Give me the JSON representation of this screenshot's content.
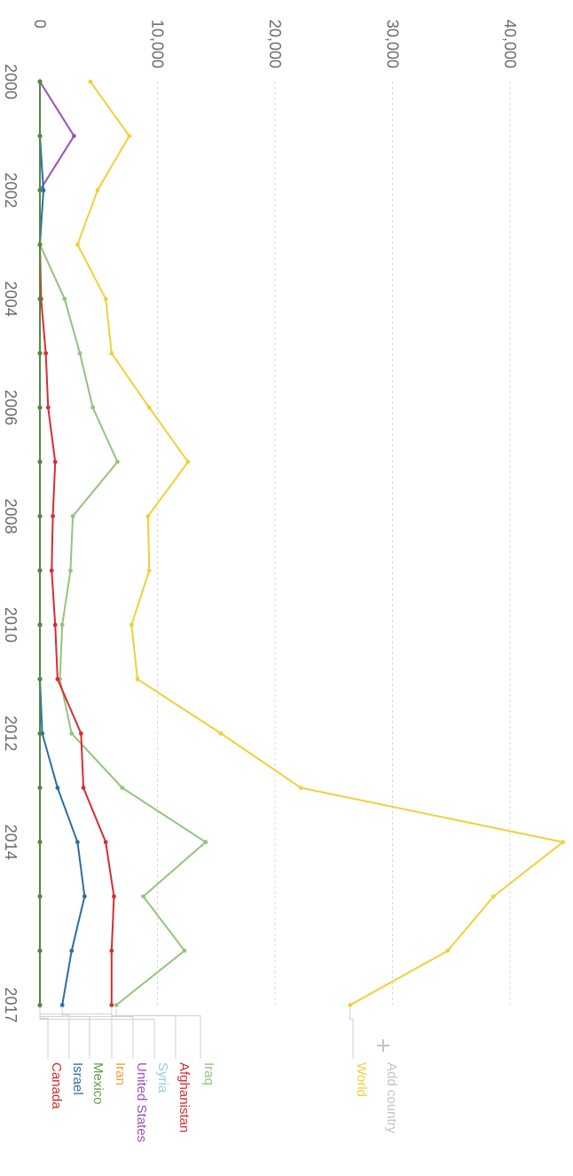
{
  "chart_data": {
    "type": "line",
    "x": [
      2000,
      2001,
      2002,
      2003,
      2004,
      2005,
      2006,
      2007,
      2008,
      2009,
      2010,
      2011,
      2012,
      2013,
      2014,
      2015,
      2016,
      2017
    ],
    "x_tick_labels": [
      "2000",
      "2002",
      "2004",
      "2006",
      "2008",
      "2010",
      "2012",
      "2014",
      "2017"
    ],
    "x_tick_values": [
      2000,
      2002,
      2004,
      2006,
      2008,
      2010,
      2012,
      2014,
      2017
    ],
    "y_tick_labels": [
      "0",
      "10,000",
      "20,000",
      "30,000",
      "40,000"
    ],
    "y_tick_values": [
      0,
      10000,
      20000,
      30000,
      40000
    ],
    "ylim": [
      0,
      45000
    ],
    "grid": true,
    "legend_position": "right",
    "add_country_label": "Add country",
    "series": [
      {
        "name": "World",
        "color": "#f2cf3a",
        "values": [
          4300,
          7600,
          4900,
          3200,
          5600,
          6100,
          9300,
          12600,
          9200,
          9300,
          7800,
          8300,
          15400,
          22200,
          44500,
          38600,
          34700,
          26400
        ]
      },
      {
        "name": "Iraq",
        "color": "#92c47e",
        "values": [
          0,
          0,
          0,
          0,
          2100,
          3400,
          4500,
          6600,
          2800,
          2600,
          1900,
          1700,
          2700,
          7000,
          14100,
          8800,
          12300,
          6500
        ]
      },
      {
        "name": "Afghanistan",
        "color": "#d62d32",
        "values": [
          0,
          0,
          0,
          0,
          100,
          500,
          700,
          1300,
          1100,
          1000,
          1300,
          1500,
          3500,
          3700,
          5600,
          6300,
          6100,
          6100
        ]
      },
      {
        "name": "Syria",
        "color": "#9ec8d8",
        "values": [
          0,
          0,
          0,
          0,
          0,
          0,
          0,
          0,
          0,
          0,
          0,
          0,
          0,
          0,
          0,
          0,
          0,
          0
        ]
      },
      {
        "name": "United States",
        "color": "#9b4fbf",
        "values": [
          0,
          2900,
          0,
          0,
          0,
          0,
          0,
          0,
          0,
          0,
          0,
          0,
          0,
          0,
          0,
          0,
          0,
          0
        ]
      },
      {
        "name": "Iran",
        "color": "#e8a23a",
        "values": [
          0,
          0,
          0,
          0,
          0,
          0,
          0,
          0,
          0,
          0,
          0,
          0,
          0,
          0,
          0,
          0,
          0,
          0
        ]
      },
      {
        "name": "Mexico",
        "color": "#5f9e4a",
        "values": [
          0,
          0,
          0,
          0,
          0,
          0,
          0,
          0,
          0,
          0,
          0,
          0,
          0,
          0,
          0,
          0,
          0,
          0
        ]
      },
      {
        "name": "Israel",
        "color": "#2a6ea6",
        "values": [
          0,
          0,
          300,
          0,
          0,
          0,
          0,
          0,
          0,
          0,
          0,
          0,
          200,
          1500,
          3200,
          3800,
          2700,
          1900
        ]
      },
      {
        "name": "Canada",
        "color": "#cf2a2a",
        "values": [
          0,
          0,
          0,
          0,
          0,
          0,
          0,
          0,
          0,
          0,
          0,
          0,
          0,
          0,
          0,
          0,
          0,
          0
        ]
      },
      {
        "name": "Mexico (overlay)",
        "color": "#4c8c3c",
        "hidden_label": true,
        "values": [
          0,
          0,
          0,
          0,
          0,
          0,
          0,
          0,
          0,
          0,
          0,
          0,
          0,
          0,
          0,
          0,
          0,
          0
        ]
      }
    ]
  }
}
